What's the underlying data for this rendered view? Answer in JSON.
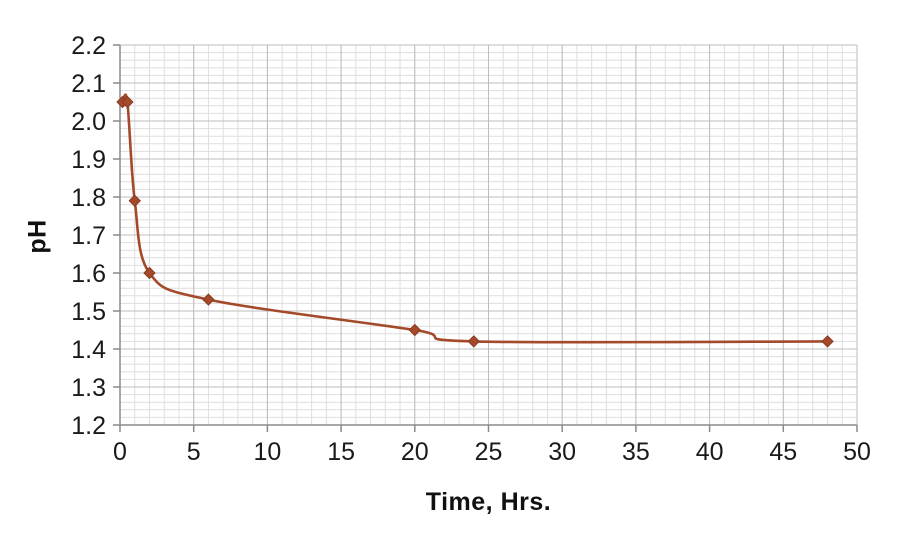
{
  "chart": {
    "xlabel": "Time, Hrs.",
    "ylabel": "pH"
  },
  "chart_data": {
    "type": "line",
    "title": "",
    "xlabel": "Time, Hrs.",
    "ylabel": "pH",
    "series": [
      {
        "name": "pH",
        "x": [
          0.17,
          0.5,
          1,
          2,
          6,
          20,
          24,
          48
        ],
        "y": [
          2.05,
          2.05,
          1.79,
          1.6,
          1.53,
          1.45,
          1.42,
          1.42
        ]
      }
    ],
    "xlim": [
      0,
      50
    ],
    "ylim": [
      1.2,
      2.2
    ],
    "x_major_step": 5,
    "x_minor_step": 1,
    "y_major_step": 0.1,
    "y_minor_step": 0.02,
    "x_tick_labels": [
      "0",
      "5",
      "10",
      "15",
      "20",
      "25",
      "30",
      "35",
      "40",
      "45",
      "50"
    ],
    "y_tick_labels": [
      "1.2",
      "1.3",
      "1.4",
      "1.5",
      "1.6",
      "1.7",
      "1.8",
      "1.9",
      "2.0",
      "2.1",
      "2.2"
    ],
    "grid": true,
    "legend_position": "none",
    "colors": {
      "line": "#A4492A",
      "marker_fill": "#A4492A",
      "marker_stroke": "#8A3A20",
      "major_grid": "#bcbcbc",
      "minor_grid": "#dedede",
      "axis": "#8a8a8a",
      "tick_text": "#1a1a1a"
    },
    "marker": "diamond"
  }
}
